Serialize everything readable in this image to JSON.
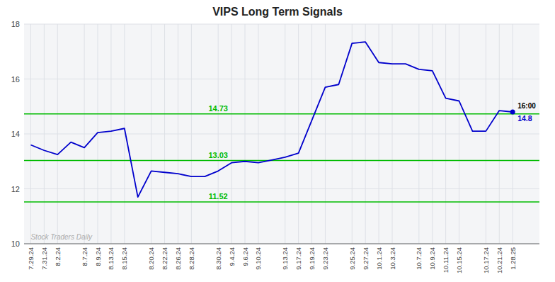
{
  "chart_data": {
    "type": "line",
    "title": "VIPS Long Term Signals",
    "categories": [
      "7.29.24",
      "7.31.24",
      "8.2.24",
      null,
      "8.7.24",
      "8.9.24",
      "8.13.24",
      "8.15.24",
      null,
      "8.20.24",
      "8.22.24",
      "8.26.24",
      "8.28.24",
      null,
      "8.30.24",
      "9.4.24",
      "9.6.24",
      "9.10.24",
      null,
      "9.13.24",
      "9.17.24",
      "9.19.24",
      "9.23.24",
      null,
      "9.25.24",
      "9.27.24",
      "10.1.24",
      "10.3.24",
      null,
      "10.7.24",
      "10.9.24",
      "10.11.24",
      "10.15.24",
      null,
      "10.17.24",
      "10.21.24",
      "1.28.25"
    ],
    "values": [
      13.6,
      13.4,
      13.25,
      13.7,
      13.5,
      14.05,
      14.1,
      14.2,
      11.7,
      12.65,
      12.6,
      12.55,
      12.45,
      12.45,
      12.65,
      12.95,
      13.0,
      12.95,
      13.05,
      13.15,
      13.3,
      14.5,
      15.7,
      15.8,
      17.3,
      17.35,
      16.6,
      16.55,
      16.55,
      16.35,
      16.3,
      15.3,
      15.2,
      14.1,
      14.1,
      14.85,
      14.8
    ],
    "color": "#0000cc",
    "reference_lines": [
      {
        "value": 14.73,
        "label": "14.73",
        "color": "#00bb00"
      },
      {
        "value": 13.03,
        "label": "13.03",
        "color": "#00bb00"
      },
      {
        "value": 11.52,
        "label": "11.52",
        "color": "#00bb00"
      }
    ],
    "annotations": [
      "16:00",
      "14.8"
    ],
    "watermark": "Stock Traders Daily",
    "ylim": [
      10,
      18
    ],
    "yticks": [
      10,
      12,
      14,
      16,
      18
    ],
    "grid": true
  }
}
